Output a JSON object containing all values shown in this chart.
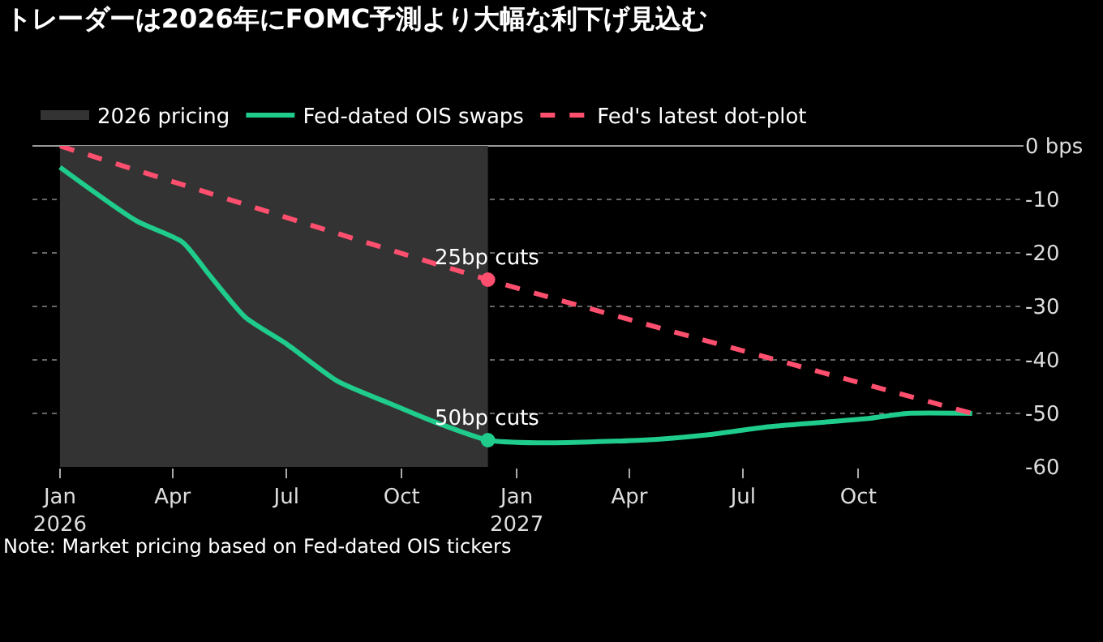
{
  "chart_data": {
    "type": "line",
    "title": "トレーダーは2026年にFOMC予測より大幅な利下げ見込む",
    "xlim": [
      "2025-12-10",
      "2028-02-10"
    ],
    "xticks": [
      {
        "value": "2026-01-01",
        "label": "Jan\n2026"
      },
      {
        "value": "2026-04-01",
        "label": "Apr"
      },
      {
        "value": "2026-07-01",
        "label": "Jul"
      },
      {
        "value": "2026-10-01",
        "label": "Oct"
      },
      {
        "value": "2027-01-01",
        "label": "Jan\n2027"
      },
      {
        "value": "2027-04-01",
        "label": "Apr"
      },
      {
        "value": "2027-07-01",
        "label": "Jul"
      },
      {
        "value": "2027-10-01",
        "label": "Oct"
      }
    ],
    "ylim": [
      -60,
      0
    ],
    "yticks": [
      {
        "value": 0,
        "label": "0 bps"
      },
      -10,
      -20,
      -30,
      -40,
      -50,
      -60
    ],
    "grid": "y",
    "legend": "top left",
    "marker": "none",
    "series": [
      {
        "name": "Fed-dated OIS swaps",
        "color": "#1fcc8c",
        "line_style": "solid",
        "x": [
          "2026-01-01",
          "2026-03-03",
          "2026-04-09",
          "2026-04-30",
          "2026-05-29",
          "2026-07-01",
          "2026-08-11",
          "2026-09-20",
          "2026-11-01",
          "2026-12-09",
          "2027-01-18",
          "2027-04-11",
          "2027-06-02",
          "2027-07-21",
          "2027-10-07",
          "2027-11-09",
          "2027-12-31"
        ],
        "values": [
          -4,
          -14,
          -18,
          -24,
          -32,
          -37,
          -44,
          -48,
          -52,
          -55,
          -55.5,
          -55,
          -54,
          -52.5,
          -51,
          -50,
          -50
        ]
      },
      {
        "name": "Fed's latest dot-plot",
        "color": "#ff4f6e",
        "line_style": "dashed",
        "x": [
          "2026-01-01",
          "2026-12-09",
          "2027-12-31"
        ],
        "values": [
          0,
          -25,
          -50
        ]
      }
    ],
    "bands": [
      {
        "axis": "x",
        "from": "2026-01-01",
        "to": "2026-12-09",
        "label": "2026 pricing",
        "color": "#333333"
      }
    ],
    "annotations": [
      {
        "text": "25bp cuts",
        "x": "2026-12-09",
        "y": -25
      },
      {
        "text": "50bp cuts",
        "x": "2026-12-09",
        "y": -55
      },
      "Note: Market pricing based on Fed-dated OIS tickers"
    ]
  }
}
